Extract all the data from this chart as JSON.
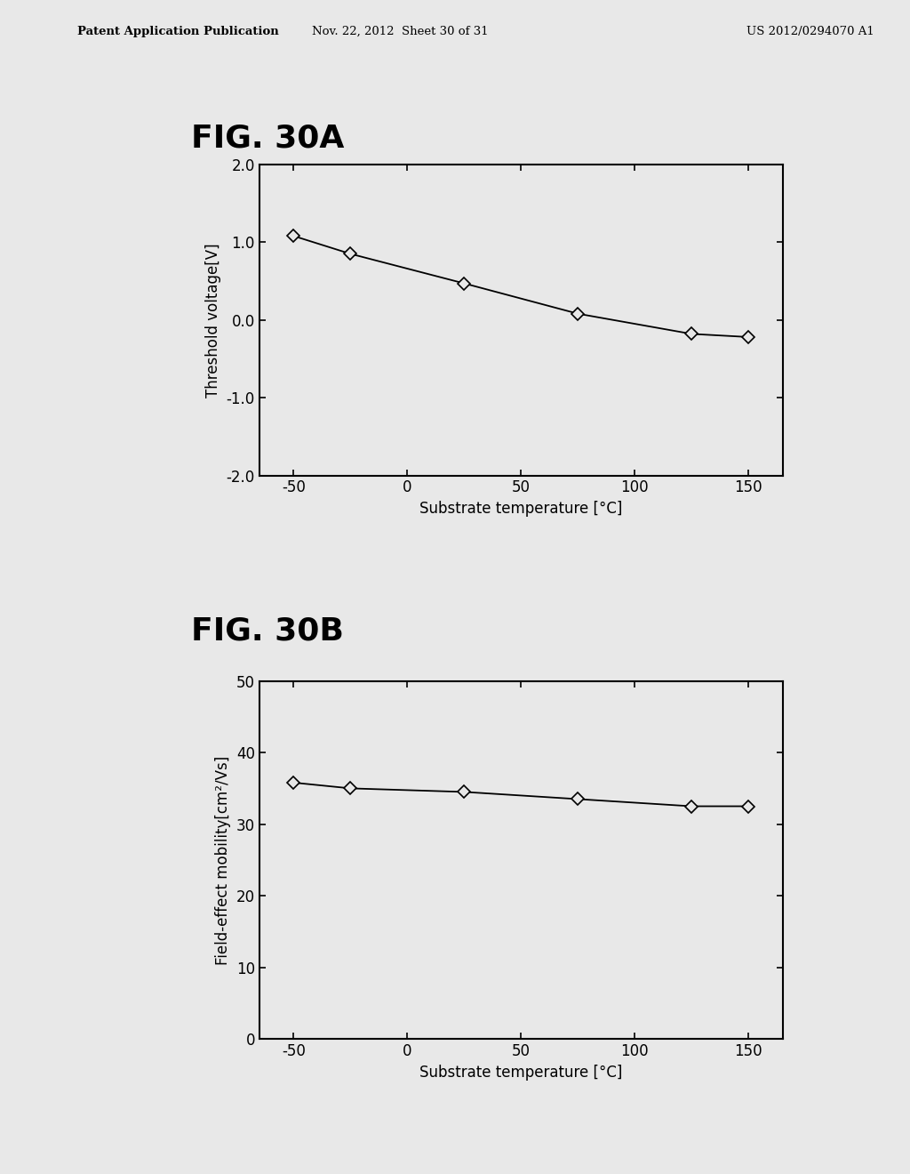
{
  "fig30a_title": "FIG. 30A",
  "fig30b_title": "FIG. 30B",
  "header_left": "Patent Application Publication",
  "header_mid": "Nov. 22, 2012  Sheet 30 of 31",
  "header_right": "US 2012/0294070 A1",
  "plot_a": {
    "x": [
      -50,
      -25,
      25,
      75,
      125,
      150
    ],
    "y": [
      1.08,
      0.85,
      0.47,
      0.08,
      -0.18,
      -0.22
    ],
    "xlabel": "Substrate temperature [°C]",
    "ylabel": "Threshold voltage[V]",
    "xlim": [
      -65,
      165
    ],
    "ylim": [
      -2.0,
      2.0
    ],
    "xticks": [
      -50,
      0,
      50,
      100,
      150
    ],
    "yticks": [
      -2.0,
      -1.0,
      0.0,
      1.0,
      2.0
    ],
    "ytick_labels": [
      "-2.0",
      "-1.0",
      "0.0",
      "1.0",
      "2.0"
    ]
  },
  "plot_b": {
    "x": [
      -50,
      -25,
      25,
      75,
      125,
      150
    ],
    "y": [
      35.8,
      35.0,
      34.5,
      33.5,
      32.5,
      32.5
    ],
    "xlabel": "Substrate temperature [°C]",
    "ylabel": "Field-effect mobility[cm²/Vs]",
    "xlim": [
      -65,
      165
    ],
    "ylim": [
      0,
      50
    ],
    "xticks": [
      -50,
      0,
      50,
      100,
      150
    ],
    "yticks": [
      0,
      10,
      20,
      30,
      40,
      50
    ],
    "ytick_labels": [
      "0",
      "10",
      "20",
      "30",
      "40",
      "50"
    ]
  },
  "background_color": "#e8e8e8",
  "plot_bg_color": "#e8e8e8",
  "line_color": "#000000",
  "marker_facecolor": "#e8e8e8",
  "marker_edgecolor": "#000000"
}
